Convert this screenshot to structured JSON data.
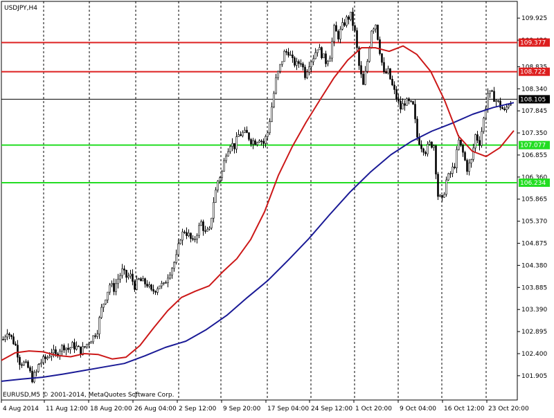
{
  "chart_data": {
    "type": "candlestick",
    "title": "USDJPY,H4",
    "copyright": "EURUSD,M5 © 2001-2014, MetaQuotes Software Corp.",
    "y_range": [
      101.36,
      110.3
    ],
    "price_ticks": [
      "109.925",
      "109.430",
      "108.835",
      "108.340",
      "107.845",
      "107.350",
      "106.855",
      "106.360",
      "105.865",
      "105.370",
      "104.875",
      "104.380",
      "103.885",
      "103.390",
      "102.895",
      "102.400",
      "101.905"
    ],
    "x_labels": [
      "4 Aug 2014",
      "11 Aug 12:00",
      "18 Aug 20:00",
      "26 Aug 04:00",
      "2 Sep 12:00",
      "9 Sep 20:00",
      "17 Sep 04:00",
      "24 Sep 12:00",
      "1 Oct 20:00",
      "9 Oct 04:00",
      "16 Oct 12:00",
      "23 Oct 20:00"
    ],
    "grid": true,
    "current_price": "108.105",
    "levels": [
      {
        "price": 109.377,
        "label": "109.377",
        "color": "#dd1f1f"
      },
      {
        "price": 108.722,
        "label": "108.722",
        "color": "#dd1f1f"
      },
      {
        "price": 107.077,
        "label": "107.077",
        "color": "#22dd22"
      },
      {
        "price": 106.234,
        "label": "106.234",
        "color": "#22dd22"
      }
    ],
    "ma_fast": {
      "color": "#cc1818",
      "points": [
        [
          0,
          102.25
        ],
        [
          1,
          102.42
        ],
        [
          2,
          102.46
        ],
        [
          3,
          102.44
        ],
        [
          4,
          102.36
        ],
        [
          5,
          102.33
        ],
        [
          6,
          102.4
        ],
        [
          7,
          102.38
        ],
        [
          8,
          102.28
        ],
        [
          9,
          102.32
        ],
        [
          10,
          102.58
        ],
        [
          11,
          102.98
        ],
        [
          12,
          103.36
        ],
        [
          13,
          103.66
        ],
        [
          14,
          103.8
        ],
        [
          15,
          103.92
        ],
        [
          16,
          104.24
        ],
        [
          17,
          104.53
        ],
        [
          18,
          104.96
        ],
        [
          19,
          105.58
        ],
        [
          20,
          106.4
        ],
        [
          21,
          107.04
        ],
        [
          22,
          107.59
        ],
        [
          23,
          108.09
        ],
        [
          24,
          108.58
        ],
        [
          25,
          108.98
        ],
        [
          26,
          109.26
        ],
        [
          27,
          109.26
        ],
        [
          28,
          109.18
        ],
        [
          29,
          109.3
        ],
        [
          30,
          109.11
        ],
        [
          31,
          108.73
        ],
        [
          32,
          108.08
        ],
        [
          33,
          107.28
        ],
        [
          34,
          106.94
        ],
        [
          35,
          106.82
        ],
        [
          36,
          107.02
        ],
        [
          37,
          107.4
        ]
      ]
    },
    "ma_slow": {
      "color": "#1a1a96",
      "points": [
        [
          0,
          101.78
        ],
        [
          1,
          101.83
        ],
        [
          2,
          101.87
        ],
        [
          3,
          101.94
        ],
        [
          4,
          102.02
        ],
        [
          5,
          102.1
        ],
        [
          6,
          102.18
        ],
        [
          7,
          102.35
        ],
        [
          8,
          102.54
        ],
        [
          9,
          102.68
        ],
        [
          10,
          102.94
        ],
        [
          11,
          103.26
        ],
        [
          12,
          103.66
        ],
        [
          13,
          104.04
        ],
        [
          14,
          104.5
        ],
        [
          15,
          104.98
        ],
        [
          16,
          105.51
        ],
        [
          17,
          106.02
        ],
        [
          18,
          106.47
        ],
        [
          19,
          106.86
        ],
        [
          20,
          107.16
        ],
        [
          21,
          107.39
        ],
        [
          22,
          107.57
        ],
        [
          23,
          107.77
        ],
        [
          24,
          107.92
        ],
        [
          25,
          108.03
        ]
      ]
    },
    "price": {
      "up_color": "#000000",
      "path": [
        [
          4,
          102.72
        ],
        [
          10,
          102.92
        ],
        [
          16,
          102.75
        ],
        [
          22,
          102.58
        ],
        [
          28,
          102.22
        ],
        [
          34,
          102.18
        ],
        [
          40,
          102.08
        ],
        [
          46,
          101.84
        ],
        [
          52,
          101.98
        ],
        [
          56,
          102.18
        ],
        [
          62,
          102.25
        ],
        [
          68,
          102.32
        ],
        [
          74,
          102.46
        ],
        [
          80,
          102.35
        ],
        [
          86,
          102.51
        ],
        [
          92,
          102.57
        ],
        [
          98,
          102.5
        ],
        [
          104,
          102.58
        ],
        [
          110,
          102.54
        ],
        [
          116,
          102.45
        ],
        [
          122,
          102.55
        ],
        [
          128,
          102.68
        ],
        [
          134,
          102.78
        ],
        [
          140,
          102.93
        ],
        [
          146,
          103.4
        ],
        [
          152,
          103.68
        ],
        [
          158,
          103.95
        ],
        [
          164,
          103.86
        ],
        [
          170,
          104.08
        ],
        [
          176,
          104.25
        ],
        [
          182,
          104.12
        ],
        [
          188,
          104.14
        ],
        [
          194,
          103.92
        ],
        [
          200,
          104.05
        ],
        [
          206,
          104.0
        ],
        [
          212,
          103.96
        ],
        [
          218,
          103.78
        ],
        [
          224,
          103.85
        ],
        [
          230,
          103.95
        ],
        [
          236,
          103.92
        ],
        [
          242,
          104.16
        ],
        [
          248,
          104.34
        ],
        [
          254,
          104.55
        ],
        [
          260,
          105.02
        ],
        [
          266,
          105.16
        ],
        [
          272,
          105.05
        ],
        [
          278,
          104.88
        ],
        [
          284,
          105.12
        ],
        [
          290,
          105.34
        ],
        [
          296,
          105.1
        ],
        [
          302,
          105.15
        ],
        [
          308,
          105.82
        ],
        [
          314,
          106.28
        ],
        [
          320,
          106.48
        ],
        [
          326,
          106.92
        ],
        [
          332,
          107.12
        ],
        [
          338,
          107.05
        ],
        [
          344,
          107.3
        ],
        [
          350,
          107.34
        ],
        [
          356,
          107.32
        ],
        [
          362,
          107.18
        ],
        [
          368,
          107.16
        ],
        [
          374,
          107.24
        ],
        [
          380,
          107.12
        ],
        [
          386,
          107.36
        ],
        [
          392,
          107.94
        ],
        [
          398,
          108.54
        ],
        [
          404,
          108.84
        ],
        [
          410,
          109.14
        ],
        [
          416,
          109.18
        ],
        [
          422,
          108.95
        ],
        [
          428,
          108.88
        ],
        [
          434,
          108.96
        ],
        [
          440,
          108.66
        ],
        [
          446,
          108.92
        ],
        [
          452,
          109.06
        ],
        [
          458,
          109.28
        ],
        [
          464,
          109.12
        ],
        [
          470,
          108.95
        ],
        [
          476,
          109.1
        ],
        [
          482,
          109.68
        ],
        [
          488,
          109.52
        ],
        [
          494,
          109.74
        ],
        [
          500,
          109.9
        ],
        [
          506,
          109.98
        ],
        [
          512,
          109.6
        ],
        [
          518,
          108.85
        ],
        [
          524,
          108.4
        ],
        [
          530,
          108.96
        ],
        [
          536,
          109.68
        ],
        [
          542,
          109.8
        ],
        [
          548,
          109.2
        ],
        [
          554,
          108.66
        ],
        [
          560,
          108.72
        ],
        [
          566,
          108.4
        ],
        [
          572,
          108.14
        ],
        [
          578,
          107.9
        ],
        [
          584,
          108.04
        ],
        [
          590,
          108.02
        ],
        [
          596,
          107.94
        ],
        [
          602,
          107.26
        ],
        [
          608,
          107.06
        ],
        [
          614,
          106.95
        ],
        [
          620,
          107.1
        ],
        [
          626,
          107.08
        ],
        [
          632,
          105.95
        ],
        [
          638,
          105.82
        ],
        [
          644,
          106.28
        ],
        [
          650,
          106.44
        ],
        [
          656,
          106.64
        ],
        [
          662,
          107.16
        ],
        [
          668,
          106.9
        ],
        [
          674,
          106.55
        ],
        [
          680,
          106.72
        ],
        [
          686,
          107.3
        ],
        [
          692,
          107.14
        ],
        [
          698,
          107.66
        ],
        [
          704,
          108.24
        ],
        [
          710,
          108.2
        ],
        [
          716,
          108.08
        ],
        [
          722,
          107.96
        ],
        [
          728,
          107.82
        ],
        [
          734,
          108.02
        ],
        [
          740,
          108.05
        ]
      ]
    }
  }
}
